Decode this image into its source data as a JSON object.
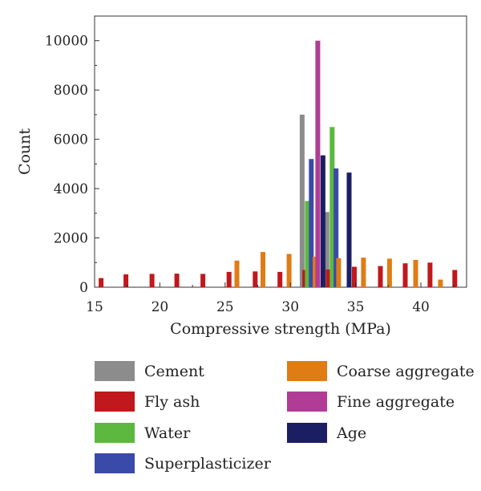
{
  "chart_data": {
    "type": "bar",
    "xlabel": "Compressive strength (MPa)",
    "ylabel": "Count",
    "xlim": [
      15,
      43.5
    ],
    "ylim": [
      0,
      11000
    ],
    "xticks": [
      15,
      20,
      25,
      30,
      35,
      40
    ],
    "yticks": [
      0,
      2000,
      4000,
      6000,
      8000,
      10000
    ],
    "grid": false,
    "legend_position": "bottom",
    "series": [
      {
        "name": "Cement",
        "color": "#8c8c8c",
        "points": [
          [
            30.9,
            7000
          ],
          [
            32.8,
            3050
          ]
        ]
      },
      {
        "name": "Fly ash",
        "color": "#c0181c",
        "points": [
          [
            15.5,
            370
          ],
          [
            17.4,
            520
          ],
          [
            19.4,
            540
          ],
          [
            21.3,
            550
          ],
          [
            23.3,
            540
          ],
          [
            25.3,
            620
          ],
          [
            27.3,
            640
          ],
          [
            29.2,
            620
          ],
          [
            31.1,
            700
          ],
          [
            32.9,
            720
          ],
          [
            34.9,
            830
          ],
          [
            36.9,
            860
          ],
          [
            38.8,
            970
          ],
          [
            40.7,
            1000
          ],
          [
            42.6,
            700
          ]
        ]
      },
      {
        "name": "Water",
        "color": "#5cb83f",
        "points": [
          [
            31.3,
            3500
          ],
          [
            33.2,
            6500
          ]
        ]
      },
      {
        "name": "Superplasticizer",
        "color": "#3a4aa8",
        "points": [
          [
            31.6,
            5200
          ],
          [
            33.5,
            4820
          ]
        ]
      },
      {
        "name": "Coarse aggregate",
        "color": "#e07c14",
        "points": [
          [
            25.9,
            1080
          ],
          [
            27.9,
            1430
          ],
          [
            29.9,
            1350
          ],
          [
            31.9,
            1240
          ],
          [
            33.7,
            1180
          ],
          [
            35.6,
            1200
          ],
          [
            37.6,
            1160
          ],
          [
            39.6,
            1110
          ],
          [
            41.5,
            310
          ]
        ]
      },
      {
        "name": "Fine aggregate",
        "color": "#b03c95",
        "points": [
          [
            32.1,
            10000
          ]
        ]
      },
      {
        "name": "Age",
        "color": "#1c1e63",
        "points": [
          [
            32.5,
            5350
          ],
          [
            34.5,
            4650
          ]
        ]
      }
    ],
    "legend": [
      {
        "name": "Cement",
        "color": "#8c8c8c"
      },
      {
        "name": "Coarse aggregate",
        "color": "#e07c14"
      },
      {
        "name": "Fly ash",
        "color": "#c0181c"
      },
      {
        "name": "Fine aggregate",
        "color": "#b03c95"
      },
      {
        "name": "Water",
        "color": "#5cb83f"
      },
      {
        "name": "Age",
        "color": "#1c1e63"
      },
      {
        "name": "Superplasticizer",
        "color": "#3a4aa8"
      }
    ]
  }
}
